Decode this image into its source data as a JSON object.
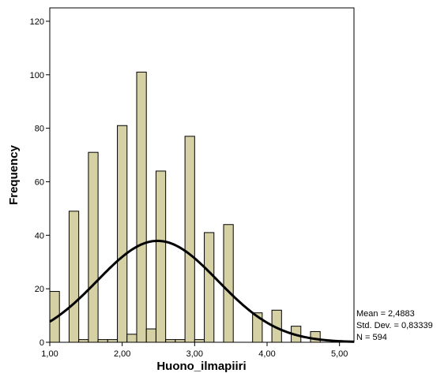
{
  "chart_data": {
    "type": "bar",
    "subtype": "histogram",
    "xlabel": "Huono_ilmapiiri",
    "ylabel": "Frequency",
    "xlim": [
      1.0,
      5.2
    ],
    "ylim": [
      0,
      125
    ],
    "x_ticks": [
      1.0,
      2.0,
      3.0,
      4.0,
      5.0
    ],
    "x_tick_labels": [
      "1,00",
      "2,00",
      "3,00",
      "4,00",
      "5,00"
    ],
    "y_ticks": [
      0,
      20,
      40,
      60,
      80,
      100,
      120
    ],
    "y_tick_labels": [
      "0",
      "20",
      "40",
      "60",
      "80",
      "100",
      "120"
    ],
    "bin_width": 0.1333,
    "bins": [
      {
        "x": 1.0667,
        "value": 19
      },
      {
        "x": 1.2,
        "value": 0
      },
      {
        "x": 1.3333,
        "value": 49
      },
      {
        "x": 1.4667,
        "value": 1
      },
      {
        "x": 1.6,
        "value": 71
      },
      {
        "x": 1.7333,
        "value": 1
      },
      {
        "x": 1.8667,
        "value": 1
      },
      {
        "x": 2.0,
        "value": 81
      },
      {
        "x": 2.1333,
        "value": 3
      },
      {
        "x": 2.2667,
        "value": 101
      },
      {
        "x": 2.4,
        "value": 5
      },
      {
        "x": 2.5333,
        "value": 64
      },
      {
        "x": 2.6667,
        "value": 1
      },
      {
        "x": 2.8,
        "value": 1
      },
      {
        "x": 2.9333,
        "value": 77
      },
      {
        "x": 3.0667,
        "value": 1
      },
      {
        "x": 3.2,
        "value": 41
      },
      {
        "x": 3.3333,
        "value": 0
      },
      {
        "x": 3.4667,
        "value": 44
      },
      {
        "x": 3.6,
        "value": 0
      },
      {
        "x": 3.7333,
        "value": 0
      },
      {
        "x": 3.8667,
        "value": 11
      },
      {
        "x": 4.0,
        "value": 0
      },
      {
        "x": 4.1333,
        "value": 12
      },
      {
        "x": 4.2667,
        "value": 0
      },
      {
        "x": 4.4,
        "value": 6
      },
      {
        "x": 4.5333,
        "value": 0
      },
      {
        "x": 4.6667,
        "value": 4
      }
    ],
    "normal_curve": {
      "mean": 2.4883,
      "std": 0.83339,
      "n": 594
    },
    "colors": {
      "bar_fill": "#d6d0a5",
      "bar_stroke": "#000000",
      "curve": "#000000",
      "frame": "#000000"
    },
    "grid": false,
    "stats": {
      "mean_label": "Mean = 2,4883",
      "std_label": "Std. Dev. = 0,83339",
      "n_label": "N = 594"
    }
  }
}
